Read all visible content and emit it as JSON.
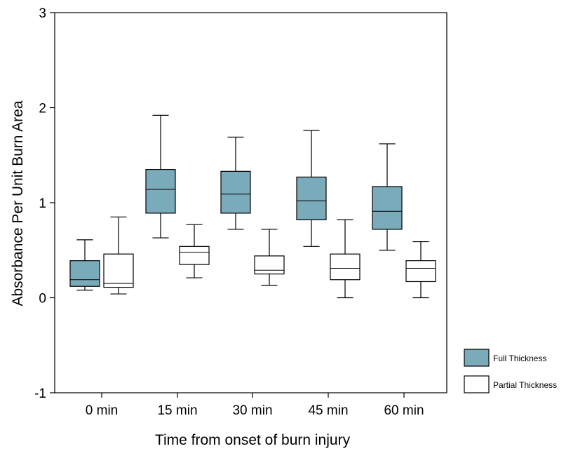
{
  "chart_data": {
    "type": "box",
    "title": "",
    "xlabel": "Time from onset of burn injury",
    "ylabel": "Absorbance Per Unit Burn Area",
    "ylim": [
      -1,
      3
    ],
    "yticks": [
      "-1",
      "0",
      "1",
      "2",
      "3"
    ],
    "categories": [
      "0 min",
      "15 min",
      "30 min",
      "45 min",
      "60 min"
    ],
    "grid": false,
    "legend_position": "bottom-right",
    "series": [
      {
        "name": "Full Thickness",
        "color": "#7aabbb",
        "boxes": [
          {
            "min": 0.08,
            "q1": 0.12,
            "median": 0.19,
            "q3": 0.39,
            "max": 0.61
          },
          {
            "min": 0.63,
            "q1": 0.89,
            "median": 1.14,
            "q3": 1.35,
            "max": 1.92
          },
          {
            "min": 0.72,
            "q1": 0.89,
            "median": 1.09,
            "q3": 1.33,
            "max": 1.69
          },
          {
            "min": 0.54,
            "q1": 0.82,
            "median": 1.02,
            "q3": 1.27,
            "max": 1.76
          },
          {
            "min": 0.5,
            "q1": 0.72,
            "median": 0.91,
            "q3": 1.17,
            "max": 1.62
          }
        ]
      },
      {
        "name": "Partial Thickness",
        "color": "#ffffff",
        "boxes": [
          {
            "min": 0.04,
            "q1": 0.11,
            "median": 0.15,
            "q3": 0.46,
            "max": 0.85
          },
          {
            "min": 0.21,
            "q1": 0.35,
            "median": 0.48,
            "q3": 0.54,
            "max": 0.77
          },
          {
            "min": 0.13,
            "q1": 0.25,
            "median": 0.29,
            "q3": 0.44,
            "max": 0.72
          },
          {
            "min": 0.0,
            "q1": 0.19,
            "median": 0.31,
            "q3": 0.46,
            "max": 0.82
          },
          {
            "min": 0.0,
            "q1": 0.17,
            "median": 0.31,
            "q3": 0.39,
            "max": 0.59
          }
        ]
      }
    ]
  }
}
